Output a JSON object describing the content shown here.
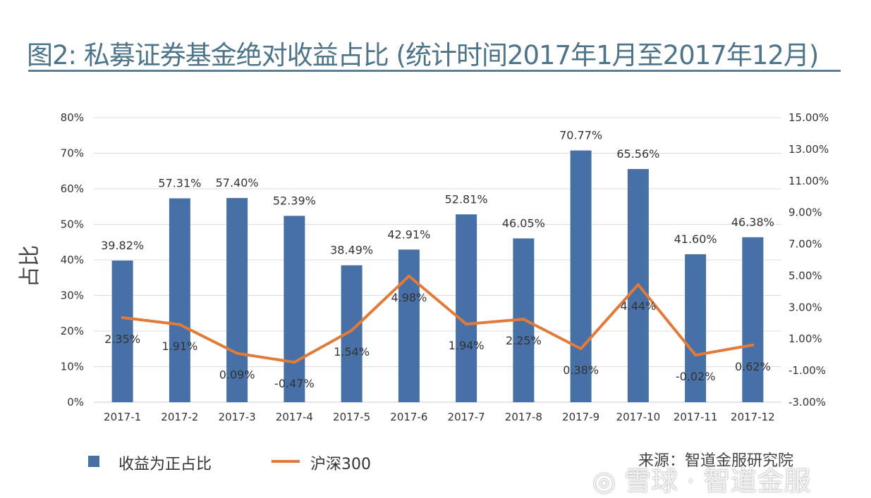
{
  "title": "图2: 私募证券基金绝对收益占比 (统计时间2017年1月至2017年12月)",
  "source": "来源：智道金服研究院",
  "watermark": "雪球 · 智道金服",
  "chart_data": {
    "type": "bar+line",
    "title": "",
    "ylabel": "占比",
    "categories": [
      "2017-1",
      "2017-2",
      "2017-3",
      "2017-4",
      "2017-5",
      "2017-6",
      "2017-7",
      "2017-8",
      "2017-9",
      "2017-10",
      "2017-11",
      "2017-12"
    ],
    "y_left": {
      "min": 0,
      "max": 80,
      "step": 10,
      "ticks": [
        "0%",
        "10%",
        "20%",
        "30%",
        "40%",
        "50%",
        "60%",
        "70%",
        "80%"
      ]
    },
    "y_right": {
      "min": -3,
      "max": 15,
      "step": 2,
      "ticks": [
        "-3.00%",
        "-1.00%",
        "1.00%",
        "3.00%",
        "5.00%",
        "7.00%",
        "9.00%",
        "11.00%",
        "13.00%",
        "15.00%"
      ]
    },
    "grid": true,
    "legend_position": "bottom-left",
    "series": [
      {
        "name": "收益为正占比",
        "type": "bar",
        "axis": "left",
        "color": "#4670a6",
        "values": [
          39.82,
          57.31,
          57.4,
          52.39,
          38.49,
          42.91,
          52.81,
          46.05,
          70.77,
          65.56,
          41.6,
          46.38
        ],
        "labels": [
          "39.82%",
          "57.31%",
          "57.40%",
          "52.39%",
          "38.49%",
          "42.91%",
          "52.81%",
          "46.05%",
          "70.77%",
          "65.56%",
          "41.60%",
          "46.38%"
        ]
      },
      {
        "name": "沪深300",
        "type": "line",
        "axis": "right",
        "color": "#e07b39",
        "values": [
          2.35,
          1.91,
          0.09,
          -0.47,
          1.54,
          4.98,
          1.94,
          2.25,
          0.38,
          4.44,
          -0.02,
          0.62
        ],
        "labels": [
          "2.35%",
          "1.91%",
          "0.09%",
          "-0.47%",
          "1.54%",
          "4.98%",
          "1.94%",
          "2.25%",
          "0.38%",
          "4.44%",
          "-0.02%",
          "0.62%"
        ]
      }
    ]
  }
}
